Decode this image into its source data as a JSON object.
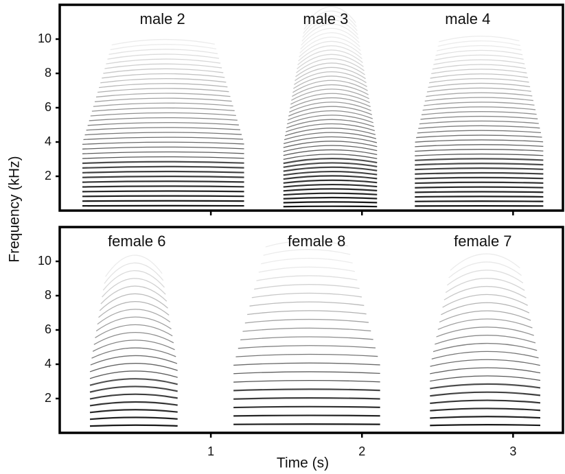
{
  "chart_data": [
    {
      "type": "spectrogram",
      "ylabel": "Frequency (kHz)",
      "annotations": [
        "male 2",
        "male 3",
        "male 4"
      ],
      "xlim": [
        0,
        3.33
      ],
      "xticks": [
        1,
        2,
        3
      ],
      "ylim": [
        0,
        12
      ],
      "yticks": [
        2,
        4,
        6,
        8,
        10
      ]
    },
    {
      "type": "spectrogram",
      "xlabel": "Time (s)",
      "annotations": [
        "female 6",
        "female 8",
        "female 7"
      ],
      "xlim": [
        0,
        3.33
      ],
      "xticks": [
        1,
        2,
        3
      ],
      "ylim": [
        0,
        12
      ],
      "yticks": [
        2,
        4,
        6,
        8,
        10
      ]
    }
  ]
}
